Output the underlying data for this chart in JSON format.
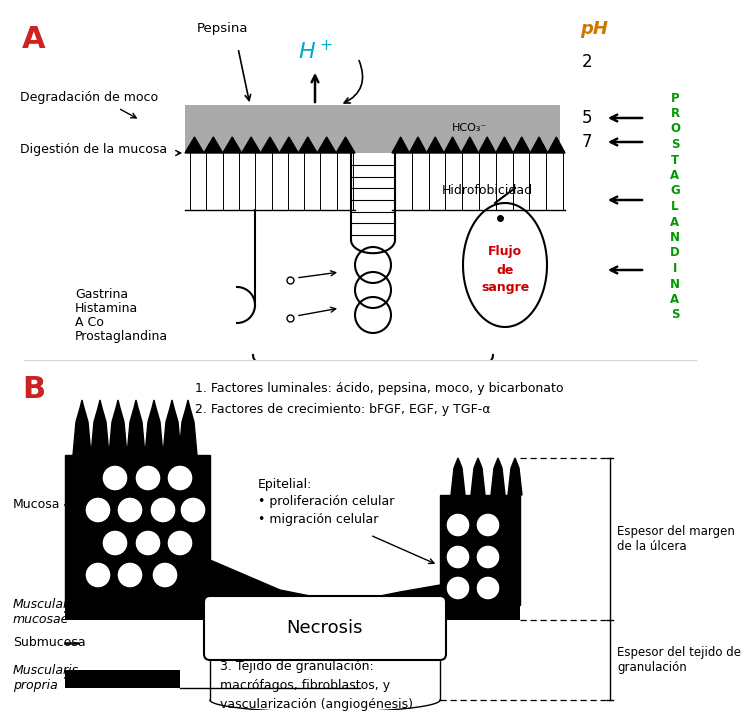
{
  "panel_A_label": "A",
  "panel_B_label": "B",
  "panel_A_color": "#cc2222",
  "pH_color": "#cc7700",
  "H_plus_color": "#00aacc",
  "prostaglandinas_color": "#009900",
  "flujo_color": "#cc0000",
  "gray_mucus": "#aaaaaa",
  "text_pepsina": "Pepsina",
  "text_degradacion": "Degradación de moco",
  "text_digestion": "Digestión de la mucosa",
  "text_hidrofobicidad": "Hidrofobicidad",
  "text_HCO3": "HCO₃⁻",
  "text_pH": "pH",
  "text_2": "2",
  "text_5": "5",
  "text_7": "7",
  "text_prostaglandinas": [
    "P",
    "R",
    "O",
    "S",
    "T",
    "A",
    "G",
    "L",
    "A",
    "N",
    "D",
    "I",
    "N",
    "A",
    "S"
  ],
  "text_gastrina": "Gastrina",
  "text_histamina": "Histamina",
  "text_aco": "A Co",
  "text_prostaglandina2": "Prostaglandina",
  "text_flujo": "Flujo\nde\nsangre",
  "text_factor1": "1. Factores luminales: ácido, pepsina, moco, y bicarbonato",
  "text_factor2": "2. Factores de crecimiento: bFGF, EGF, y TGF-α",
  "text_epitelial": "Epitelial:",
  "text_prolif": "• proliferación celular",
  "text_migracion": "• migración celular",
  "text_mucosa": "Mucosa",
  "text_muscularis_mucosae": "Muscularis\nmucosae",
  "text_submucosa": "Submucosa",
  "text_muscularis_propria": "Muscularis\npropria",
  "text_necrosis": "Necrosis",
  "text_granulacion": "3. Tejido de granulación:\nmacrófagos, fibroblastos, y\nvascularización (angiogénesis)",
  "text_espesor_margen": "Espesor del margen\nde la úlcera",
  "text_espesor_tejido": "Espesor del tejido de\ngranulación"
}
